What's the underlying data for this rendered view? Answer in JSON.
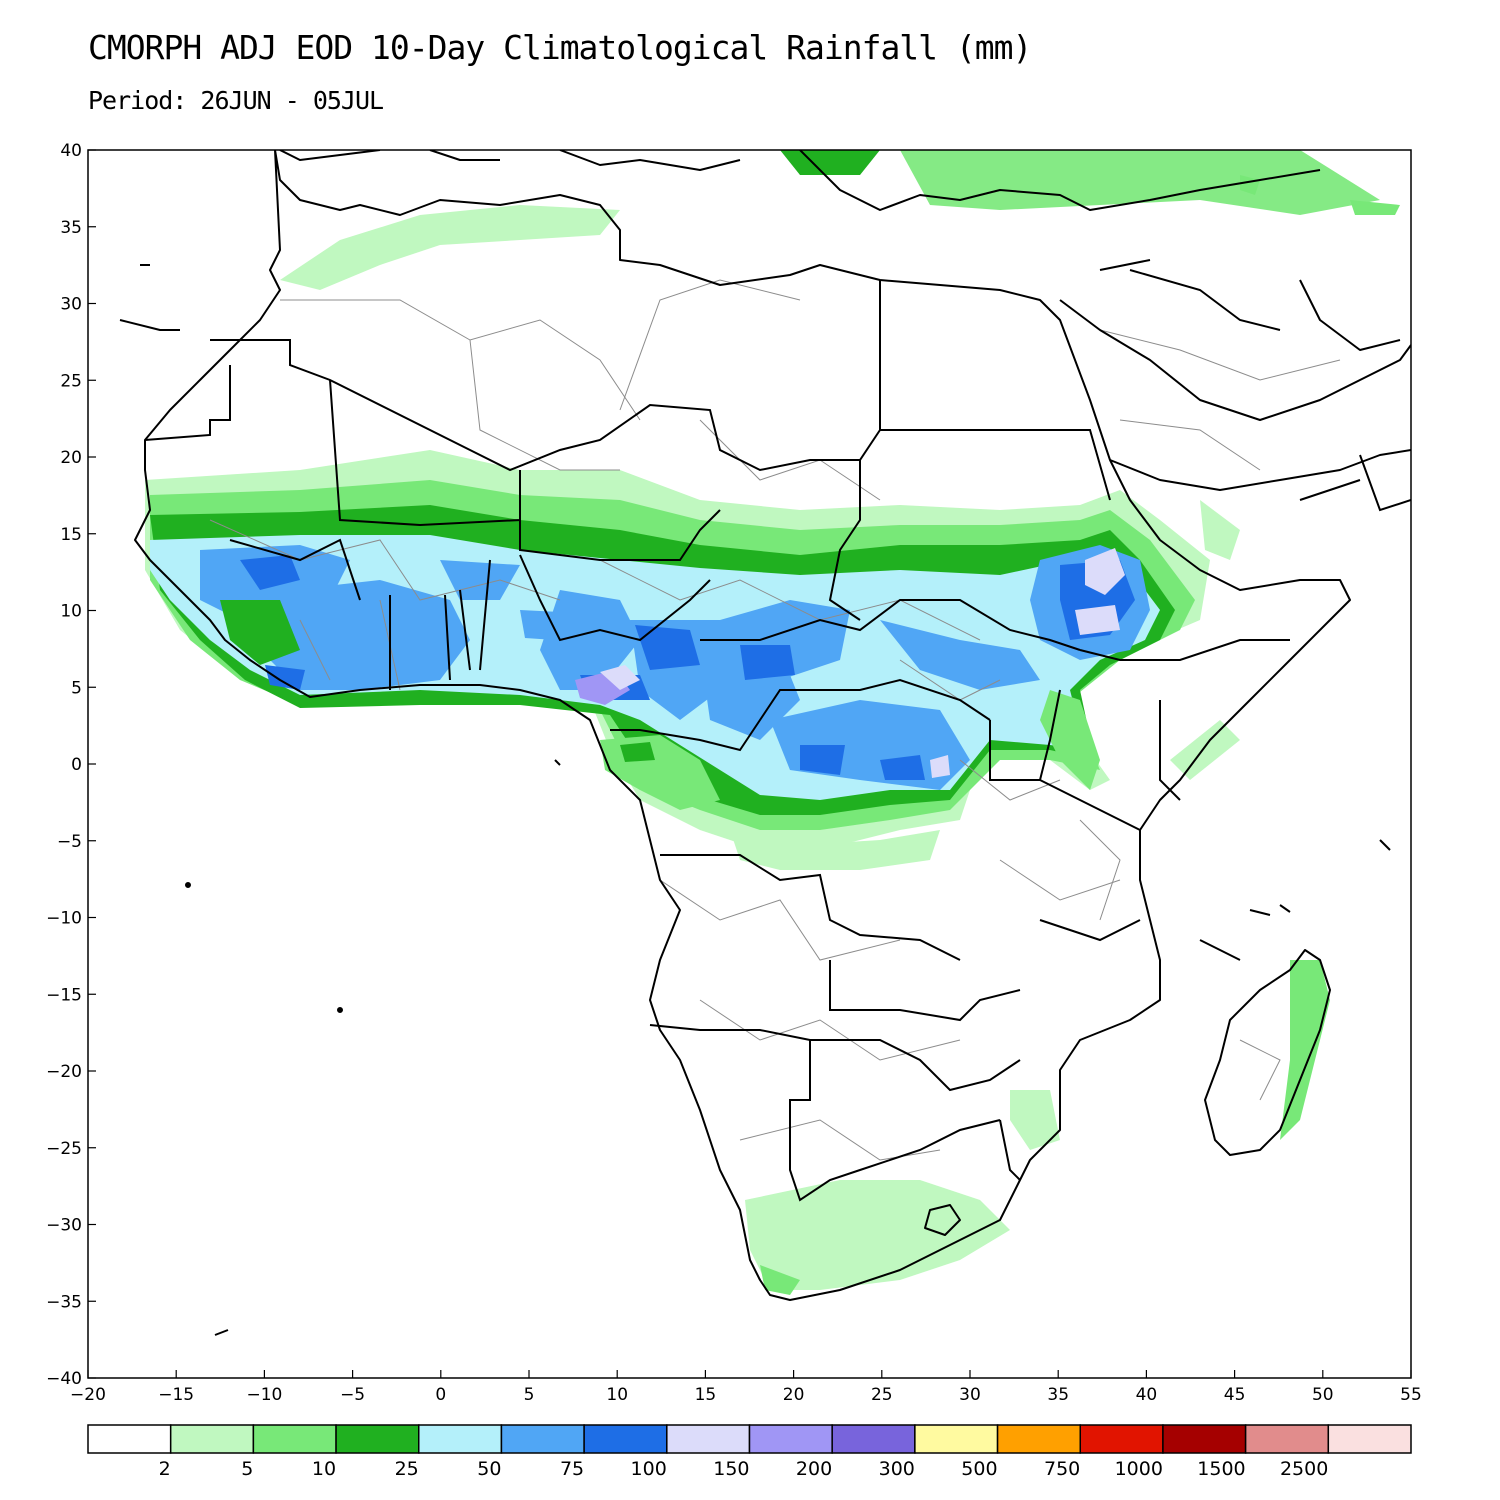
{
  "header": {
    "title": "CMORPH ADJ EOD 10-Day Climatological Rainfall (mm)",
    "period": "Period: 26JUN - 05JUL"
  },
  "map": {
    "lon_range": [
      -20,
      55
    ],
    "lat_range": [
      -40,
      40
    ],
    "x_ticks": [
      "−20",
      "−15",
      "−10",
      "−5",
      "0",
      "5",
      "10",
      "15",
      "20",
      "25",
      "30",
      "35",
      "40",
      "45",
      "50",
      "55"
    ],
    "y_ticks": [
      "40",
      "35",
      "30",
      "25",
      "20",
      "15",
      "10",
      "5",
      "0",
      "−5",
      "−10",
      "−15",
      "−20",
      "−25",
      "−30",
      "−35",
      "−40"
    ]
  },
  "colorbar": {
    "colors": [
      "#ffffff",
      "#c0f8c0",
      "#78e878",
      "#20b020",
      "#b4f0fa",
      "#50a6f5",
      "#1e6ee6",
      "#dcdcfa",
      "#a096f5",
      "#7864dc",
      "#fffaa0",
      "#ffa000",
      "#e11400",
      "#a50000",
      "#e18c8c",
      "#fae0e0"
    ],
    "labels": [
      "2",
      "5",
      "10",
      "25",
      "50",
      "75",
      "100",
      "150",
      "200",
      "300",
      "500",
      "750",
      "1000",
      "1500",
      "2500"
    ]
  },
  "colors": {
    "land_outline": "#000000",
    "admin_border": "#8c8c8c"
  }
}
